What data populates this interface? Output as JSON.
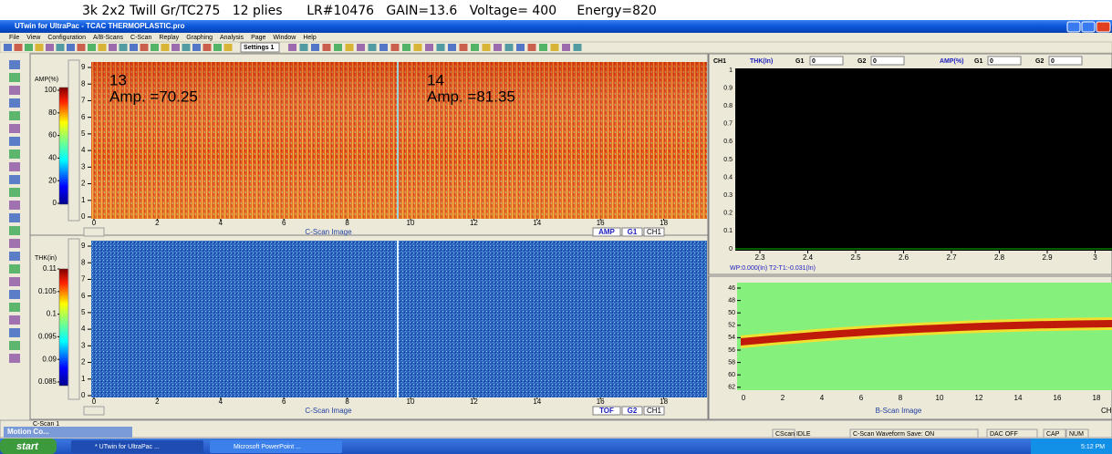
{
  "caption": "3k 2x2 Twill Gr/TC275   12 plies      LR#10476   GAIN=13.6   Voltage= 400     Energy=820",
  "window": {
    "title": "UTwin for UltraPac - TCAC THERMOPLASTIC.pro",
    "menu": [
      "File",
      "View",
      "Configuration",
      "A/B-Scans",
      "C-Scan",
      "Replay",
      "Graphing",
      "Analysis",
      "Page",
      "Window",
      "Help"
    ],
    "settings": "Settings 1"
  },
  "cscan_amp": {
    "colorbar_label": "AMP(%)",
    "colorbar_ticks": [
      "100",
      "80",
      "60",
      "40",
      "20",
      "0"
    ],
    "y_ticks": [
      "0",
      "1",
      "2",
      "3",
      "4",
      "5",
      "6",
      "7",
      "8",
      "9"
    ],
    "x_ticks": [
      "0",
      "2",
      "4",
      "6",
      "8",
      "10",
      "12",
      "14",
      "16",
      "18"
    ],
    "annotations": [
      {
        "label": "13",
        "value": "Amp. =70.25"
      },
      {
        "label": "14",
        "value": "Amp. =81.35"
      }
    ],
    "caption": "C-Scan Image",
    "gate_mode": "AMP",
    "gate": "G1",
    "channel": "CH1"
  },
  "cscan_thk": {
    "colorbar_label": "THK(in)",
    "colorbar_ticks": [
      "0.11",
      "0.105",
      "0.1",
      "0.095",
      "0.09",
      "0.085"
    ],
    "y_ticks": [
      "0",
      "1",
      "2",
      "3",
      "4",
      "5",
      "6",
      "7",
      "8",
      "9"
    ],
    "x_ticks": [
      "0",
      "2",
      "4",
      "6",
      "8",
      "10",
      "12",
      "14",
      "16",
      "18"
    ],
    "caption": "C-Scan Image",
    "gate_mode": "TOF",
    "gate": "G2",
    "channel": "CH1"
  },
  "ascan": {
    "header": [
      "CH1",
      "THK(In)",
      "G1",
      "0",
      "G2",
      "0",
      "AMP(%)",
      "G1",
      "0",
      "G2",
      "0"
    ],
    "y_ticks": [
      "1",
      "0.9",
      "0.8",
      "0.7",
      "0.6",
      "0.5",
      "0.4",
      "0.3",
      "0.2",
      "0.1",
      "0"
    ],
    "x_ticks": [
      "2.3",
      "2.4",
      "2.5",
      "2.6",
      "2.7",
      "2.8",
      "2.9",
      "3"
    ],
    "readout": "WP:0.000(In)  T2-T1:-0.031(In)"
  },
  "bscan": {
    "y_ticks": [
      "46",
      "48",
      "50",
      "52",
      "54",
      "56",
      "58",
      "60",
      "62"
    ],
    "x_ticks": [
      "0",
      "2",
      "4",
      "6",
      "8",
      "10",
      "12",
      "14",
      "16",
      "18"
    ],
    "caption": "B-Scan Image",
    "channel": "CH"
  },
  "status": {
    "tab": "C-Scan 1",
    "motion": "Motion Co...",
    "fields": [
      "CScan IDLE",
      "C-Scan Waveform Save: ON",
      "DAC OFF",
      "CAP",
      "NUM"
    ]
  },
  "taskbar": {
    "start": "start",
    "items": [
      "* UTwin for UltraPac ...",
      "Microsoft PowerPoint ..."
    ],
    "clock": "5:12 PM"
  }
}
